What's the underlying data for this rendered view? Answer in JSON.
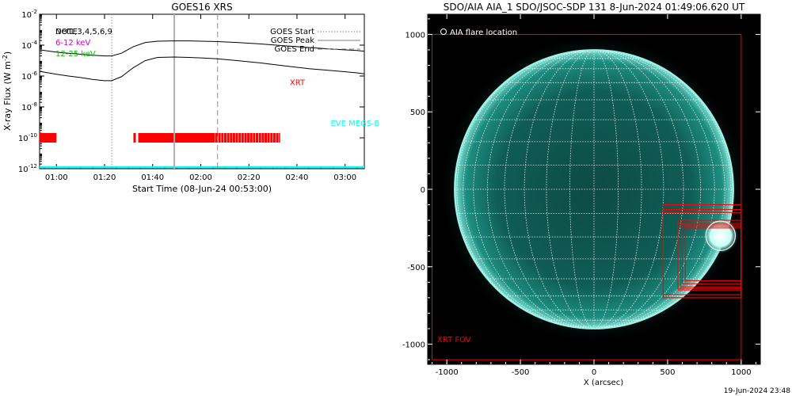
{
  "colors": {
    "xrt": "#ff0000",
    "eve": "#00ffff",
    "band_low": "#cc00cc",
    "band_high": "#00cc00",
    "solar_disk": "#0b6b62",
    "solar_limb": "#9ff3e6",
    "start_line": "#909090",
    "peak_line": "#b0b0b0",
    "end_line": "#909090"
  },
  "chart_data": [
    {
      "type": "line",
      "title": "GOES16 XRS",
      "xlabel": "Start Time (08-Jun-24 00:53:00)",
      "ylabel": "X-ray Flux (W m",
      "ylabel_sup": "-2",
      "ylabel_close": ")",
      "y_scale": "log",
      "xlim": [
        "00:53",
        "03:08"
      ],
      "ylim": [
        1e-12,
        0.01
      ],
      "x_ticks": [
        "01:00",
        "01:20",
        "01:40",
        "02:00",
        "02:20",
        "02:40",
        "03:00"
      ],
      "y_ticks": [
        {
          "base": "10",
          "exp": "-2"
        },
        {
          "base": "10",
          "exp": "-4"
        },
        {
          "base": "10",
          "exp": "-6"
        },
        {
          "base": "10",
          "exp": "-8"
        },
        {
          "base": "10",
          "exp": "-10"
        },
        {
          "base": "10",
          "exp": "-12"
        }
      ],
      "legend_left": {
        "placement": "top-left",
        "entries": [
          {
            "label": "Det1,3,4,5,6,9",
            "overlay": "NOTE",
            "color": "#000000"
          },
          {
            "label": "6-12 keV",
            "color": "#cc00cc"
          },
          {
            "label": "12-25 keV",
            "color": "#00cc00"
          }
        ]
      },
      "legend_right": {
        "placement": "top-right",
        "entries": [
          {
            "label": "GOES Start",
            "style": "dotted"
          },
          {
            "label": "GOES Peak",
            "style": "solid"
          },
          {
            "label": "GOES End",
            "style": "dashed"
          }
        ]
      },
      "event_lines": {
        "start": "01:23",
        "peak": "01:49",
        "end": "02:07"
      },
      "series": [
        {
          "channel": "long",
          "x": [
            "00:53",
            "01:00",
            "01:05",
            "01:10",
            "01:15",
            "01:20",
            "01:23",
            "01:27",
            "01:32",
            "01:37",
            "01:42",
            "01:49",
            "01:55",
            "02:00",
            "02:07",
            "02:15",
            "02:25",
            "02:35",
            "02:45",
            "02:55",
            "03:05",
            "03:08"
          ],
          "y": [
            5e-05,
            3.5e-05,
            3e-05,
            2.6e-05,
            2.2e-05,
            2e-05,
            2e-05,
            3e-05,
            8e-05,
            0.00015,
            0.00018,
            0.00019,
            0.00019,
            0.00018,
            0.00017,
            0.00015,
            0.00012,
            9e-05,
            7e-05,
            5.5e-05,
            4.5e-05,
            4e-05
          ]
        },
        {
          "channel": "short",
          "x": [
            "00:53",
            "01:00",
            "01:05",
            "01:10",
            "01:15",
            "01:20",
            "01:23",
            "01:27",
            "01:32",
            "01:37",
            "01:42",
            "01:49",
            "01:55",
            "02:00",
            "02:07",
            "02:15",
            "02:25",
            "02:35",
            "02:45",
            "02:55",
            "03:05",
            "03:08"
          ],
          "y": [
            2e-06,
            1.3e-06,
            1e-06,
            8e-07,
            6e-07,
            5e-07,
            5e-07,
            9e-07,
            3.5e-06,
            1e-05,
            1.6e-05,
            1.7e-05,
            1.6e-05,
            1.5e-05,
            1.3e-05,
            1e-05,
            7e-06,
            4.5e-06,
            3e-06,
            2.2e-06,
            1.6e-06,
            1.4e-06
          ]
        }
      ],
      "annotations": [
        {
          "text": "XRT",
          "color": "#ff0000",
          "at_time": "02:37",
          "at_flux": 2.5e-07
        },
        {
          "text": "EVE MEGS-B",
          "color": "#00ffff",
          "at_time": "02:54",
          "at_flux": 6e-10
        }
      ],
      "xrt_coverage": {
        "flux_level": 1e-10,
        "intervals": [
          [
            "00:53",
            "01:00"
          ],
          [
            "01:32",
            "01:33"
          ],
          [
            "01:34",
            "02:33"
          ]
        ]
      },
      "eve_coverage": {
        "flux_level": 1.3e-12,
        "intervals": [
          [
            "00:53",
            "03:08"
          ]
        ]
      }
    },
    {
      "type": "image",
      "title": "SDO/AIA AIA_1 SDO/JSOC-SDP 131  8-Jun-2024 01:49:06.620 UT",
      "xlabel": "X (arcsec)",
      "ylabel": "",
      "xlim": [
        -1130,
        1130
      ],
      "ylim": [
        -1130,
        1130
      ],
      "x_ticks": [
        -1000,
        -500,
        0,
        500,
        1000
      ],
      "y_ticks": [
        1000,
        500,
        0,
        -500,
        -1000
      ],
      "solar_radius_arcsec": 946,
      "grid": "heliographic 10-degree",
      "legend": "AIA flare location",
      "fov_label": "XRT FOV",
      "flare_location": {
        "x": 860,
        "y": -300,
        "radius": 100
      },
      "xrt_fov": [
        {
          "x0": -1100,
          "x1": 1000,
          "y0": -1100,
          "y1": 1000
        },
        {
          "x0": 470,
          "x1": 1000,
          "y0": -700,
          "y1": -100
        },
        {
          "x0": 470,
          "x1": 1000,
          "y0": -680,
          "y1": -130
        },
        {
          "x0": 570,
          "x1": 1000,
          "y0": -650,
          "y1": -200
        },
        {
          "x0": 590,
          "x1": 1000,
          "y0": -630,
          "y1": -230
        },
        {
          "x0": 600,
          "x1": 1000,
          "y0": -610,
          "y1": -240
        },
        {
          "x0": 620,
          "x1": 1000,
          "y0": -590,
          "y1": -250
        },
        {
          "x0": 570,
          "x1": 1000,
          "y0": -640,
          "y1": -220
        },
        {
          "x0": 470,
          "x1": 1000,
          "y0": -700,
          "y1": -150
        }
      ]
    }
  ],
  "footer": {
    "timestamp": "19-Jun-2024 23:48"
  }
}
